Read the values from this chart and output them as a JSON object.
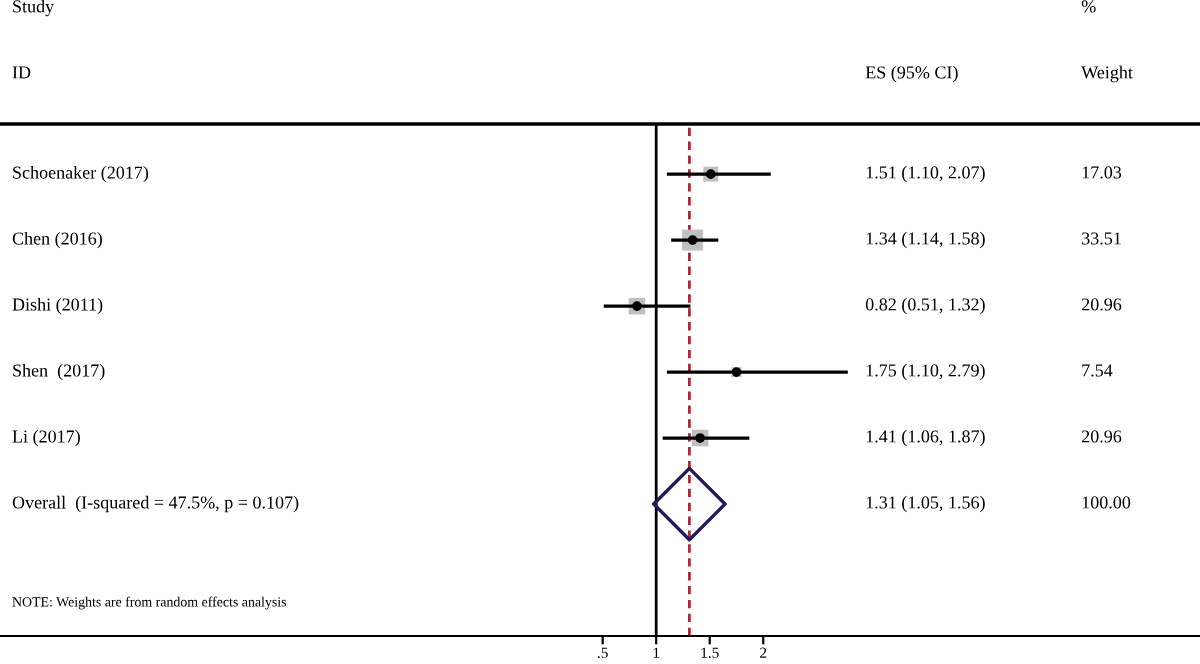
{
  "chart_data": [
    {
      "type": "scatter",
      "orientation": "horizontal",
      "categories": [
        "Schoenaker (2017)",
        "Chen (2016)",
        "Dishi (2011)",
        "Shen  (2017)",
        "Li (2017)",
        "Overall  (I-squared = 47.5%, p = 0.107)"
      ],
      "series": [
        {
          "color": "#000000",
          "marker": "square",
          "values": [
            1.51,
            1.34,
            0.82,
            1.75,
            1.41,
            null
          ],
          "errors": [
            [
              1.1,
              2.07
            ],
            [
              1.14,
              1.58
            ],
            [
              0.51,
              1.32
            ],
            [
              1.1,
              2.79
            ],
            [
              1.06,
              1.87
            ],
            null
          ],
          "sizes": [
            0.508,
            1,
            0.625,
            0.225,
            0.625,
            null
          ]
        },
        {
          "color": "#1f1a5e",
          "marker": "diamond",
          "values": [
            null,
            null,
            null,
            null,
            null,
            1.31
          ]
        }
      ],
      "xlim": [
        -5.13,
        6.08
      ],
      "xticks": [
        {
          "value": 0.5,
          "label": ".5"
        },
        1,
        1.5,
        2
      ],
      "ref_lines": [
        {
          "axis": "x",
          "value": 1,
          "color": "#000000",
          "line_style": "solid"
        },
        {
          "axis": "x",
          "value": 1.31,
          "color": "#a52a3a",
          "line_style": "dashed"
        }
      ],
      "annotations": [
        "Study",
        "ID",
        "NOTE: Weights are from random effects analysis"
      ],
      "grid": false,
      "legend": false
    },
    {
      "type": "other",
      "annotations": [
        "%",
        "ES (95% CI)",
        "Weight",
        "1.51 (1.10, 2.07)",
        "17.03",
        "1.34 (1.14, 1.58)",
        "33.51",
        "0.82 (0.51, 1.32)",
        "20.96",
        "1.75 (1.10, 2.79)",
        "7.54",
        "1.41 (1.06, 1.87)",
        "20.96",
        "1.31 (1.05, 1.56)",
        "100.00"
      ]
    }
  ]
}
